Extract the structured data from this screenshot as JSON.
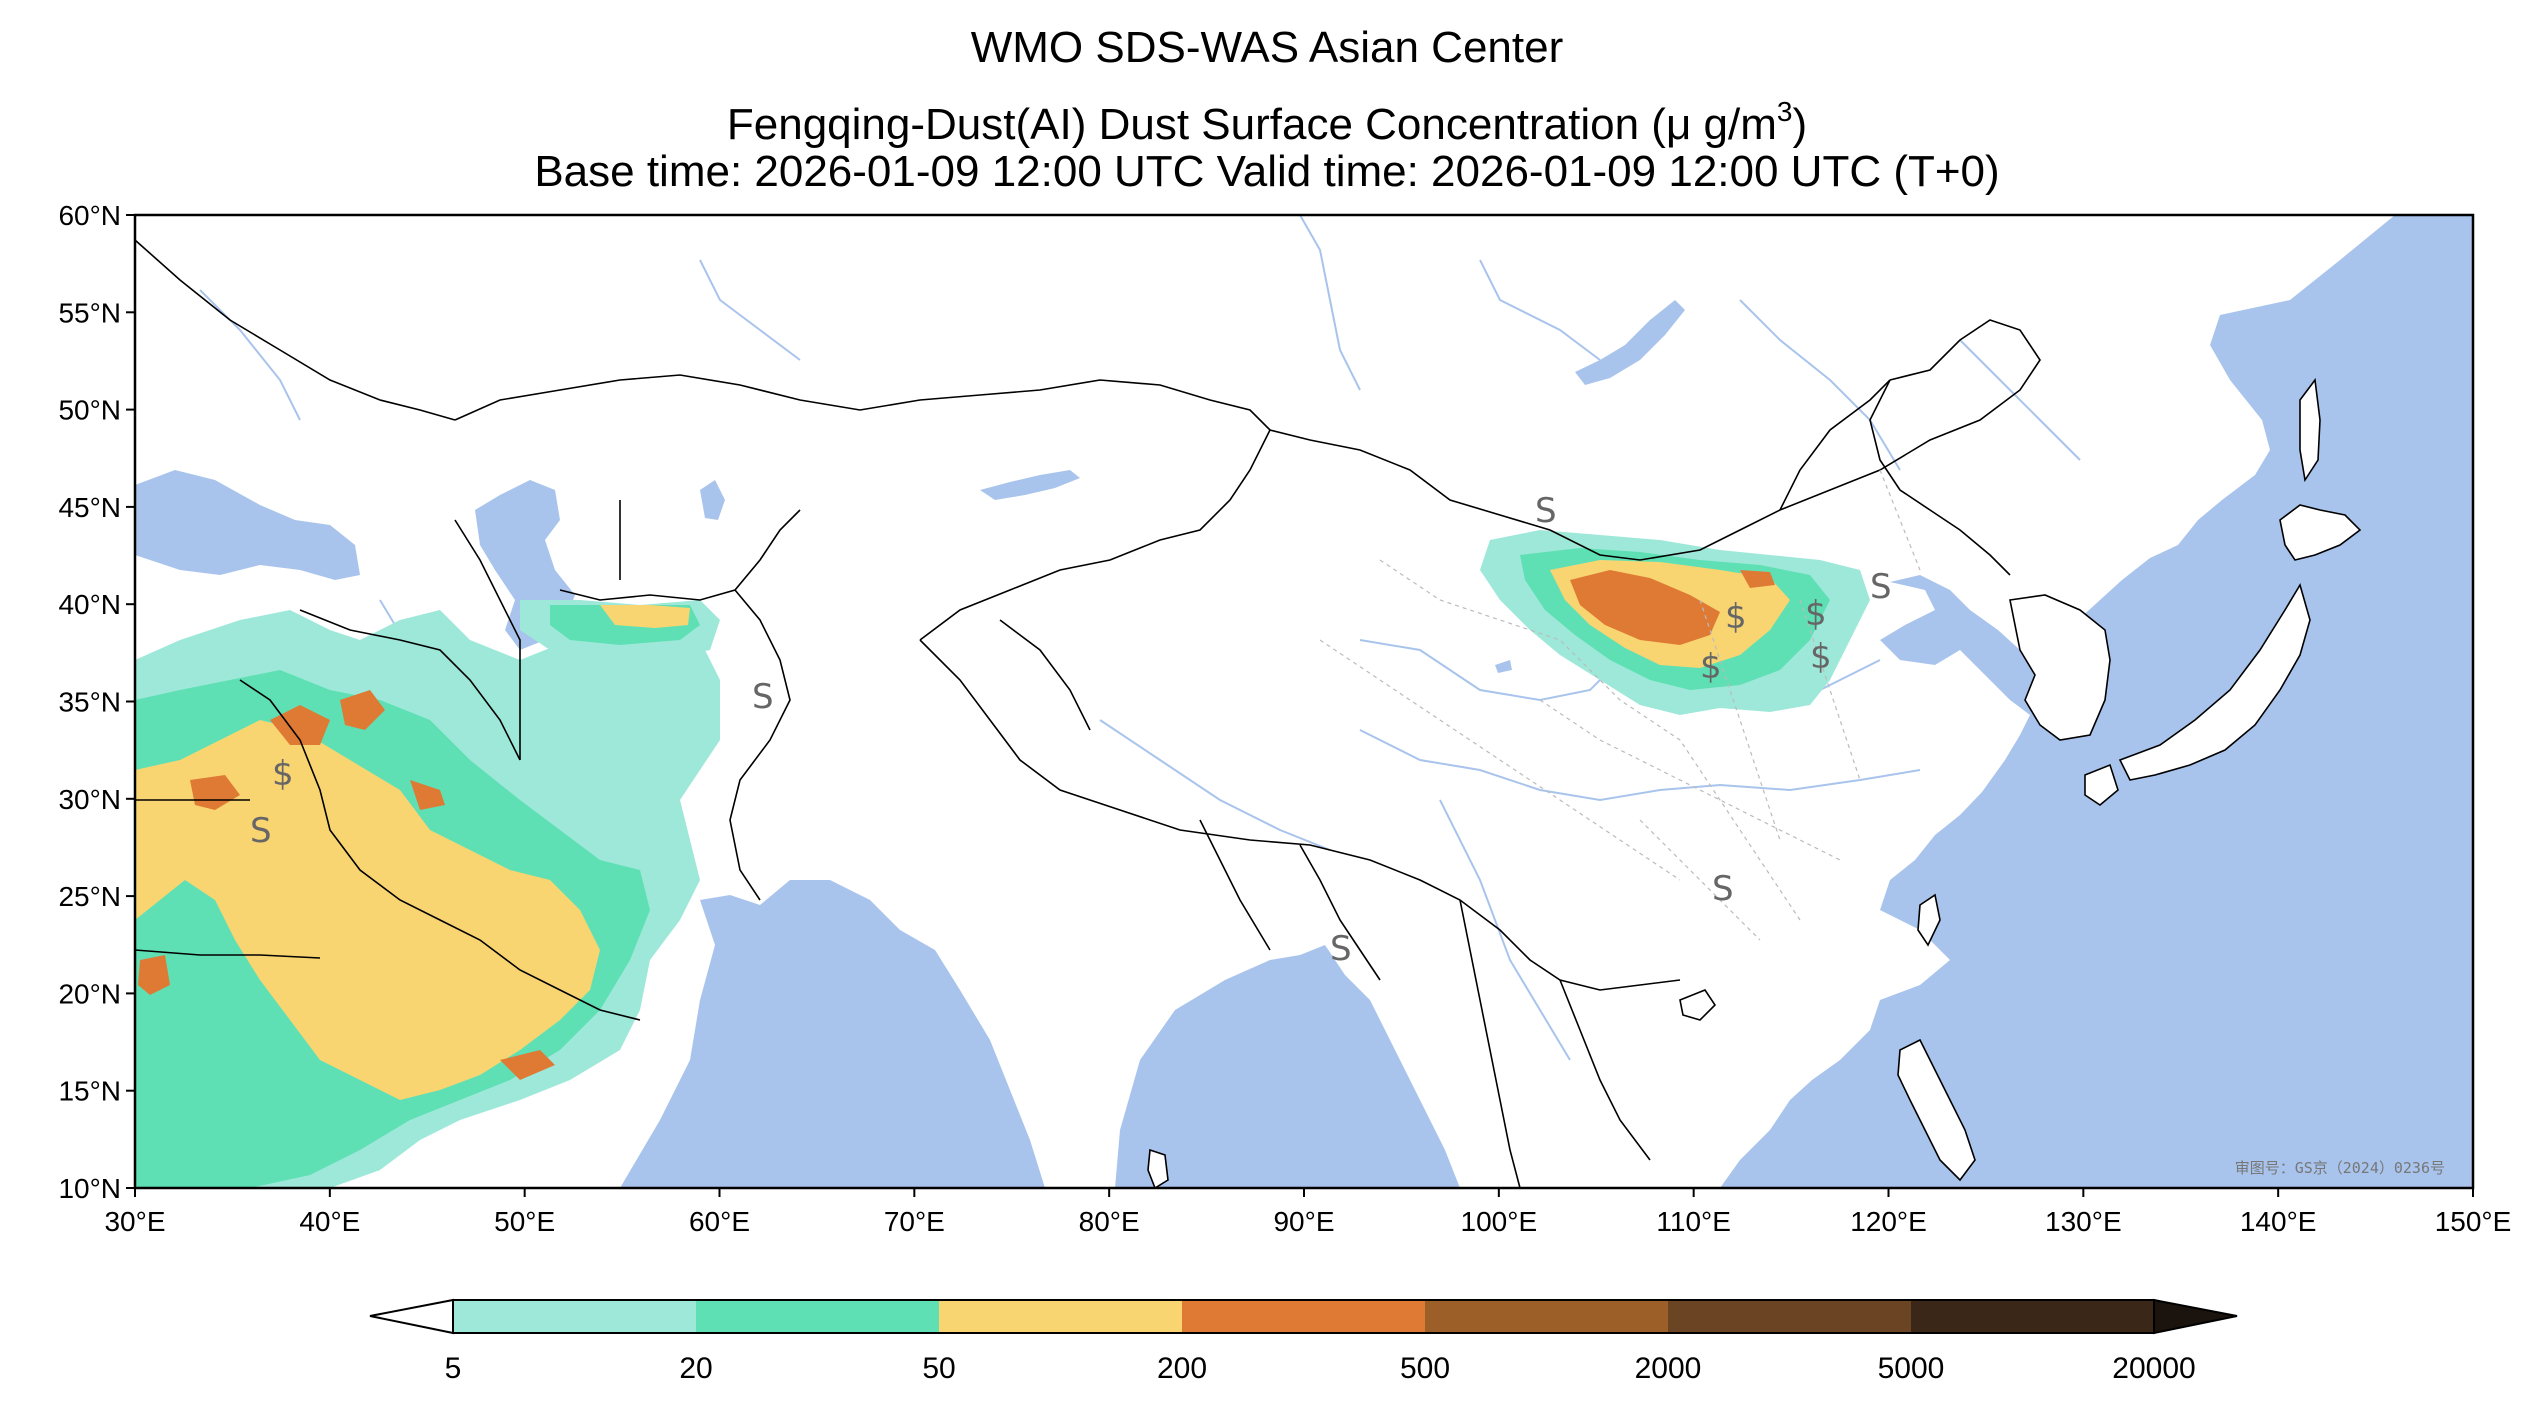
{
  "title": {
    "line1": "WMO SDS-WAS Asian Center",
    "line2_main": "Fengqing-Dust(AI) Dust Surface Concentration (μ g/m",
    "line2_sup": "3",
    "line2_end": ")",
    "line3": "Base time: 2026-01-09 12:00 UTC Valid time: 2026-01-09 12:00 UTC (T+0)"
  },
  "map": {
    "lon_range": [
      30,
      150
    ],
    "lat_range": [
      10,
      60
    ],
    "lon_ticks": [
      "30°E",
      "40°E",
      "50°E",
      "60°E",
      "70°E",
      "80°E",
      "90°E",
      "100°E",
      "110°E",
      "120°E",
      "130°E",
      "140°E",
      "150°E"
    ],
    "lat_ticks": [
      "60°N",
      "55°N",
      "50°N",
      "45°N",
      "40°N",
      "35°N",
      "30°N",
      "25°N",
      "20°N",
      "15°N",
      "10°N"
    ],
    "approval_text": "审图号：GS京（2024）0236号",
    "ocean_color": "#a9c4ec",
    "land_color": "#ffffff",
    "site_symbols": [
      "S",
      "$",
      "$",
      "$",
      "$",
      "$",
      "S",
      "S",
      "S",
      "S",
      "S"
    ]
  },
  "colorbar": {
    "ticks": [
      "5",
      "20",
      "50",
      "200",
      "500",
      "2000",
      "5000",
      "20000"
    ],
    "colors": [
      "#9ee8d9",
      "#5ee0b4",
      "#f9d572",
      "#df7a35",
      "#9d5f28",
      "#6b4423",
      "#3b2718"
    ]
  }
}
